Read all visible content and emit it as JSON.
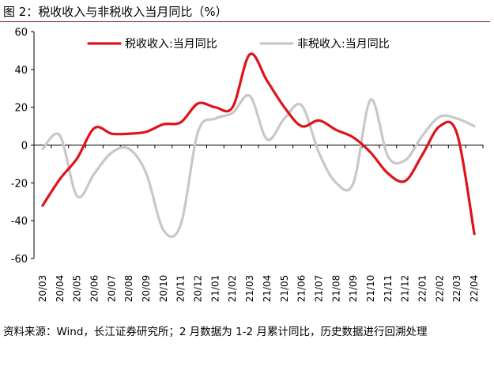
{
  "figure": {
    "title": "图 2：税收收入与非税收入当月同比（%）",
    "source": "资料来源：Wind，长江证券研究所；2 月数据为 1-2 月累计同比，历史数据进行回溯处理"
  },
  "chart_data": {
    "type": "line",
    "categories": [
      "20/03",
      "20/04",
      "20/05",
      "20/06",
      "20/07",
      "20/08",
      "20/09",
      "20/10",
      "20/11",
      "20/12",
      "21/01",
      "21/02",
      "21/03",
      "21/04",
      "21/05",
      "21/06",
      "21/07",
      "21/08",
      "21/09",
      "21/10",
      "21/11",
      "21/12",
      "22/01",
      "22/02",
      "22/03",
      "22/04"
    ],
    "series": [
      {
        "name": "税收收入:当月同比",
        "color": "#e0121a",
        "values": [
          -32,
          -18,
          -7,
          9,
          6,
          6,
          7,
          11,
          12,
          22,
          20,
          20,
          48,
          34,
          20,
          10,
          13,
          8,
          4,
          -4,
          -15,
          -19,
          -5,
          10,
          6,
          -47
        ]
      },
      {
        "name": "非税收入:当月同比",
        "color": "#c8c8c8",
        "values": [
          -2,
          5,
          -27,
          -15,
          -4,
          -2,
          -15,
          -45,
          -42,
          7,
          14,
          17,
          26,
          3,
          14,
          21,
          -4,
          -20,
          -20,
          24,
          -6,
          -8,
          5,
          15,
          14,
          10
        ]
      }
    ],
    "yticks": [
      60,
      40,
      20,
      0,
      -20,
      -40,
      -60
    ],
    "ylim": [
      -60,
      60
    ],
    "legend_position": "top",
    "grid": false
  }
}
